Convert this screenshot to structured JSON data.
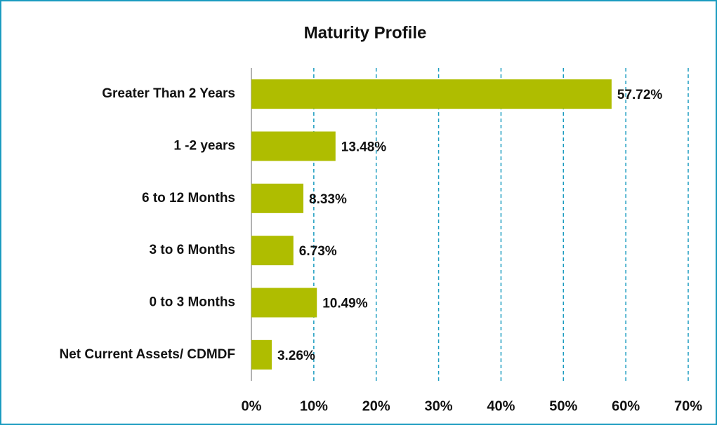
{
  "chart_data": {
    "type": "barh",
    "title": "Maturity Profile",
    "categories": [
      "Greater Than 2 Years",
      "1 -2 years",
      "6 to 12 Months",
      "3 to 6 Months",
      "0 to 3 Months",
      "Net Current Assets/ CDMDF"
    ],
    "values": [
      57.72,
      13.48,
      8.33,
      6.73,
      10.49,
      3.26
    ],
    "value_labels": [
      "57.72%",
      "13.48%",
      "8.33%",
      "6.73%",
      "10.49%",
      "3.26%"
    ],
    "color": "#afbd00",
    "xlim": [
      0,
      70
    ],
    "xticks": [
      {
        "value": 0,
        "label": "0%"
      },
      {
        "value": 10,
        "label": "10%"
      },
      {
        "value": 20,
        "label": "20%"
      },
      {
        "value": 30,
        "label": "30%"
      },
      {
        "value": 40,
        "label": "40%"
      },
      {
        "value": 50,
        "label": "50%"
      },
      {
        "value": 60,
        "label": "60%"
      },
      {
        "value": 70,
        "label": "70%"
      }
    ],
    "grid": true,
    "grid_color": "#1b9cc0"
  }
}
